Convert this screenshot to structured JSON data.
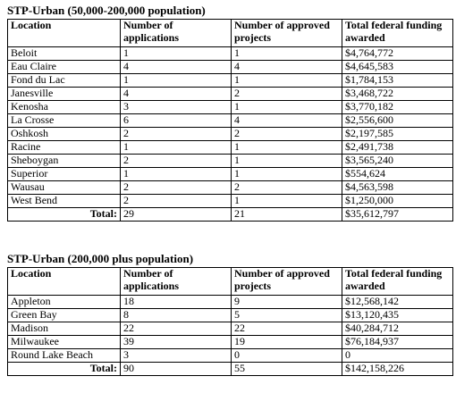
{
  "tables": [
    {
      "title": "STP-Urban (50,000-200,000 population)",
      "headers": [
        "Location",
        "Number of applications",
        "Number of approved projects",
        "Total federal funding awarded"
      ],
      "rows": [
        [
          "Beloit",
          "1",
          "1",
          "$4,764,772"
        ],
        [
          "Eau Claire",
          "4",
          "4",
          "$4,645,583"
        ],
        [
          "Fond du Lac",
          "1",
          "1",
          "$1,784,153"
        ],
        [
          "Janesville",
          "4",
          "2",
          "$3,468,722"
        ],
        [
          "Kenosha",
          "3",
          "1",
          "$3,770,182"
        ],
        [
          "La Crosse",
          "6",
          "4",
          "$2,556,600"
        ],
        [
          "Oshkosh",
          "2",
          "2",
          "$2,197,585"
        ],
        [
          "Racine",
          "1",
          "1",
          "$2,491,738"
        ],
        [
          "Sheboygan",
          "2",
          "1",
          "$3,565,240"
        ],
        [
          "Superior",
          "1",
          "1",
          "$554,624"
        ],
        [
          "Wausau",
          "2",
          "2",
          "$4,563,598"
        ],
        [
          "West Bend",
          "2",
          "1",
          "$1,250,000"
        ]
      ],
      "total": [
        "Total:",
        "29",
        "21",
        "$35,612,797"
      ]
    },
    {
      "title": "STP-Urban (200,000 plus population)",
      "headers": [
        "Location",
        "Number of applications",
        "Number of approved projects",
        "Total federal funding awarded"
      ],
      "rows": [
        [
          "Appleton",
          "18",
          "9",
          "$12,568,142"
        ],
        [
          "Green Bay",
          "8",
          "5",
          "$13,120,435"
        ],
        [
          "Madison",
          "22",
          "22",
          "$40,284,712"
        ],
        [
          "Milwaukee",
          "39",
          "19",
          "$76,184,937"
        ],
        [
          "Round Lake Beach",
          "3",
          "0",
          "0"
        ]
      ],
      "total": [
        "Total:",
        "90",
        "55",
        "$142,158,226"
      ]
    }
  ]
}
